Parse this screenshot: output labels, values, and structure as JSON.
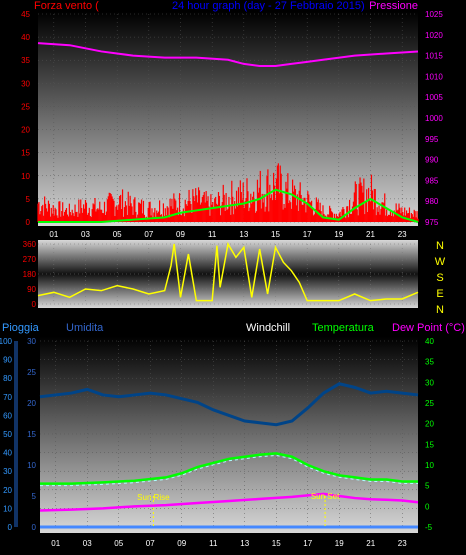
{
  "chart_data": [
    {
      "type": "line",
      "title": "24 hour graph (day - 27 Febbraio 2015)",
      "left_axis_label": "Forza vento (",
      "right_axis_label": "Pressione",
      "x_tick_labels": [
        "01",
        "03",
        "05",
        "07",
        "09",
        "11",
        "13",
        "15",
        "17",
        "19",
        "21",
        "23"
      ],
      "x_range_hours": [
        0,
        24
      ],
      "left_ylim": [
        0,
        45
      ],
      "left_ticks": [
        0,
        5,
        10,
        15,
        20,
        25,
        30,
        35,
        40,
        45
      ],
      "right_ylim": [
        975,
        1025
      ],
      "right_ticks": [
        975,
        980,
        985,
        990,
        995,
        1000,
        1005,
        1010,
        1015,
        1020,
        1025
      ],
      "colors": {
        "wind": "#ff0000",
        "wind_avg": "#00ff00",
        "pressure": "#ff00ff",
        "left_text": "#ff0000",
        "right_text": "#ff00ff",
        "title": "#0000ff"
      },
      "series": [
        {
          "key": "pressure",
          "x": [
            0,
            2,
            4,
            6,
            8,
            10,
            12,
            13,
            14,
            15,
            16,
            17,
            18,
            20,
            22,
            24
          ],
          "y": [
            1018,
            1017.5,
            1016,
            1015,
            1014.5,
            1014.5,
            1014,
            1013,
            1012.5,
            1012.5,
            1013,
            1013.5,
            1014,
            1015,
            1015.5,
            1016
          ]
        },
        {
          "key": "wind_avg",
          "x": [
            0,
            2,
            4,
            6,
            8,
            9,
            10,
            11,
            12,
            13,
            14,
            15,
            16,
            17,
            18,
            19,
            20,
            21,
            22,
            23,
            24
          ],
          "y": [
            0,
            0,
            0,
            0.5,
            1,
            2,
            2.5,
            3,
            3.5,
            4,
            5,
            7,
            6,
            4,
            1,
            0.5,
            3,
            5,
            3,
            1,
            0
          ]
        },
        {
          "key": "wind_gust",
          "x": [
            0,
            1,
            2,
            3,
            4,
            5,
            6,
            7,
            8,
            9,
            10,
            11,
            12,
            13,
            14,
            15,
            16,
            17,
            18,
            19,
            20,
            21,
            22,
            23,
            24
          ],
          "y": [
            7,
            5,
            4,
            6,
            5,
            8,
            6,
            5,
            6,
            7,
            8,
            6,
            9,
            10,
            12,
            14,
            10,
            8,
            4,
            3,
            9,
            11,
            6,
            4,
            3
          ]
        }
      ]
    },
    {
      "type": "line",
      "direction_labels": [
        "N",
        "W",
        "S",
        "E",
        "N"
      ],
      "left_ylim": [
        0,
        360
      ],
      "left_ticks": [
        0,
        90,
        180,
        270,
        360
      ],
      "x_tick_labels": [
        "01",
        "03",
        "05",
        "07",
        "09",
        "11",
        "13",
        "15",
        "17",
        "19",
        "21",
        "23"
      ],
      "colors": {
        "direction": "#ffff00",
        "left_text": "#ff0000",
        "right_text": "#ffff00"
      },
      "series": [
        {
          "key": "direction",
          "x": [
            0,
            1,
            2,
            3,
            4,
            5,
            6,
            7,
            8,
            8.4,
            8.6,
            9,
            9.5,
            10,
            11,
            11.3,
            11.5,
            12,
            12.5,
            13,
            13.5,
            14,
            14.5,
            15,
            15.5,
            16,
            16.5,
            17,
            18,
            19,
            20,
            21,
            22,
            23,
            24
          ],
          "y": [
            50,
            70,
            40,
            90,
            80,
            110,
            90,
            60,
            80,
            230,
            360,
            40,
            300,
            20,
            20,
            350,
            100,
            360,
            280,
            340,
            40,
            330,
            60,
            340,
            250,
            200,
            130,
            20,
            20,
            20,
            60,
            20,
            30,
            30,
            70
          ]
        }
      ]
    },
    {
      "type": "line",
      "labels": {
        "rain": "Pioggia",
        "humidity": "Umidita",
        "windchill": "Windchill",
        "temperature": "Temperatura",
        "dewpoint": "Dew Point (°C)"
      },
      "annotations": {
        "sunrise": "Sun Rise",
        "sunset": "Sun Set"
      },
      "sunrise_hour": 7.2,
      "sunset_hour": 18.1,
      "rain_ylim": [
        0,
        100
      ],
      "rain_ticks": [
        0,
        10,
        20,
        30,
        40,
        50,
        60,
        70,
        80,
        90,
        100
      ],
      "mid_ylim": [
        0,
        30
      ],
      "mid_ticks": [
        0,
        5,
        10,
        15,
        20,
        25,
        30
      ],
      "temp_ylim": [
        -5,
        40
      ],
      "temp_ticks": [
        -5,
        0,
        5,
        10,
        15,
        20,
        25,
        30,
        35,
        40
      ],
      "x_tick_labels": [
        "01",
        "03",
        "05",
        "07",
        "09",
        "11",
        "13",
        "15",
        "17",
        "19",
        "21",
        "23"
      ],
      "colors": {
        "rain": "#4488ff",
        "humidity": "#004488",
        "windchill": "#aaffff",
        "temperature": "#00ff00",
        "dewpoint": "#ff00ff",
        "windchill_text": "#ffffff",
        "rain_text": "#3399ff",
        "humidity_text": "#3366cc",
        "temp_text": "#00ff00",
        "dew_text": "#ff00ff"
      },
      "series": [
        {
          "key": "humidity",
          "x": [
            0,
            2,
            3,
            4,
            5,
            6,
            7,
            8,
            9,
            10,
            11,
            12,
            13,
            14,
            15,
            16,
            17,
            18,
            19,
            20,
            21,
            22,
            23,
            24
          ],
          "y": [
            70,
            72,
            74,
            71,
            70,
            71,
            72,
            71,
            69,
            67,
            63,
            60,
            57,
            56,
            55,
            57,
            64,
            72,
            77,
            75,
            72,
            73,
            72,
            71
          ]
        },
        {
          "key": "temperature",
          "x": [
            0,
            2,
            4,
            6,
            8,
            9,
            10,
            11,
            12,
            13,
            14,
            15,
            16,
            17,
            18,
            19,
            20,
            21,
            22,
            23,
            24
          ],
          "y": [
            5.5,
            5.5,
            5.8,
            6.2,
            7,
            8,
            9.5,
            10.5,
            11.5,
            12,
            12.5,
            12.8,
            12,
            10,
            8.5,
            7.5,
            7,
            6.5,
            6.5,
            6,
            6
          ]
        },
        {
          "key": "dewpoint",
          "x": [
            0,
            2,
            4,
            6,
            8,
            10,
            12,
            14,
            16,
            18,
            19,
            20,
            21,
            22,
            23,
            24
          ],
          "y": [
            -1,
            -0.8,
            -0.5,
            0,
            0.3,
            0.8,
            1.3,
            1.8,
            2.3,
            3,
            2.5,
            2,
            1.7,
            1.6,
            1.4,
            1
          ]
        }
      ]
    }
  ]
}
